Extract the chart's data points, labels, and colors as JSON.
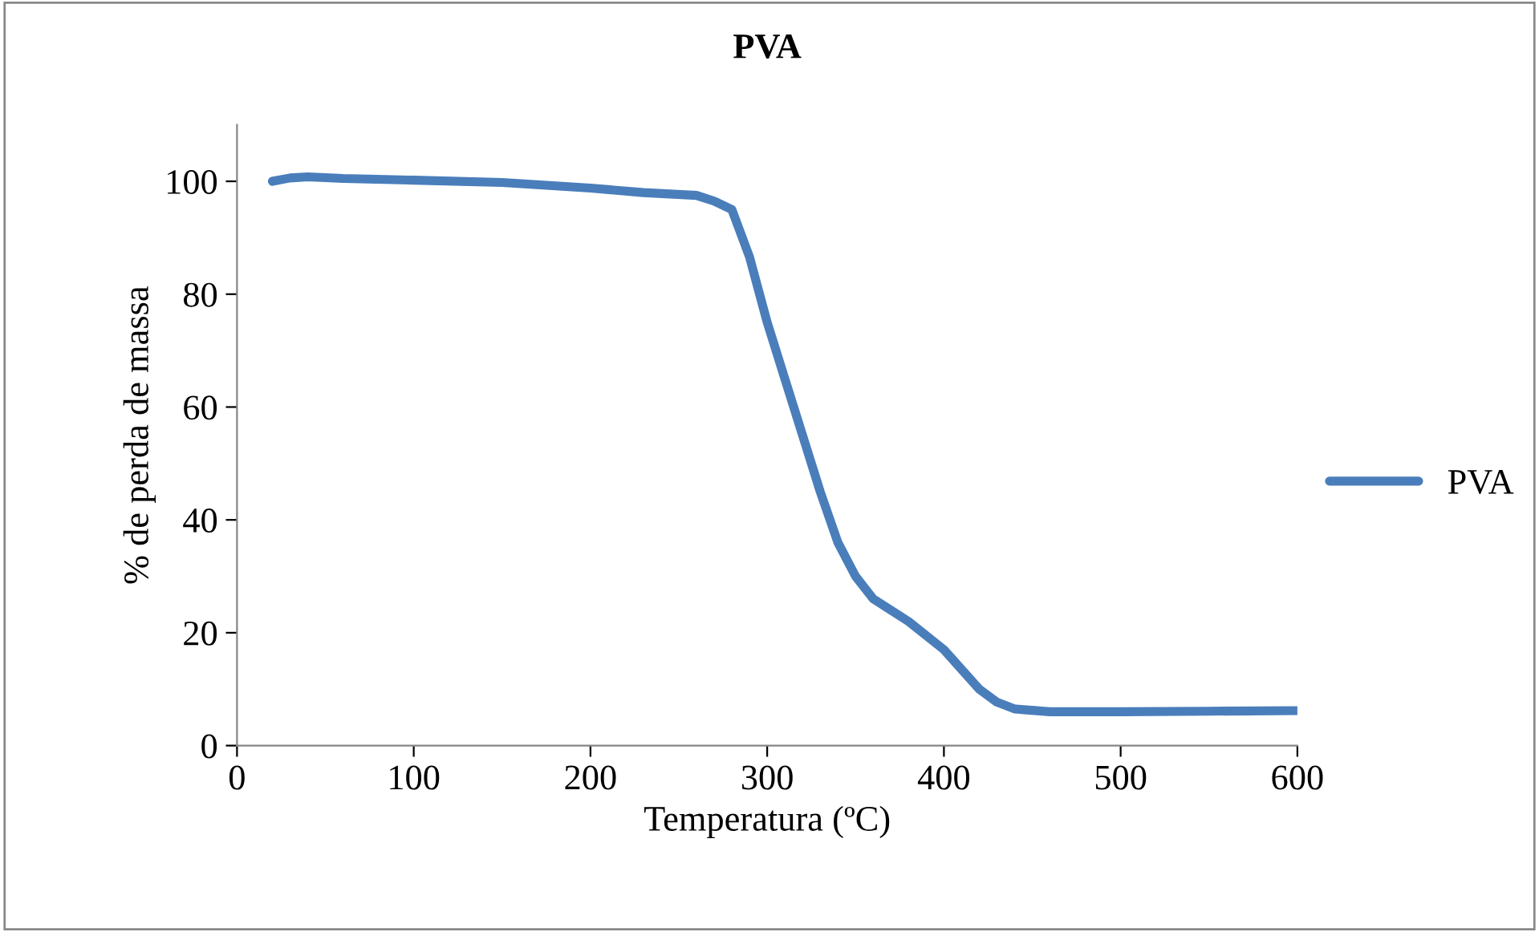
{
  "chart_data": {
    "type": "line",
    "title": "PVA",
    "xlabel": "Temperatura (ºC)",
    "ylabel": "% de perda de massa",
    "xlim": [
      0,
      600
    ],
    "xticks": [
      0,
      100,
      200,
      300,
      400,
      500,
      600
    ],
    "ylim": [
      0,
      110
    ],
    "yticks": [
      0,
      20,
      40,
      60,
      80,
      100
    ],
    "grid": false,
    "legend": "right",
    "marker": "none",
    "line_style": "solid",
    "series": [
      {
        "name": "PVA",
        "color": "#4a7ebb",
        "x": [
          20,
          30,
          40,
          60,
          100,
          150,
          200,
          230,
          260,
          270,
          280,
          290,
          300,
          310,
          320,
          330,
          340,
          350,
          360,
          380,
          400,
          420,
          430,
          440,
          460,
          500,
          550,
          600
        ],
        "values": [
          100,
          100.6,
          100.8,
          100.5,
          100.2,
          99.8,
          98.8,
          98.0,
          97.5,
          96.5,
          95,
          86.6,
          75,
          65,
          55,
          45,
          36,
          30,
          26,
          22,
          17,
          10,
          7.7,
          6.5,
          6,
          6,
          6.1,
          6.2
        ]
      }
    ]
  }
}
